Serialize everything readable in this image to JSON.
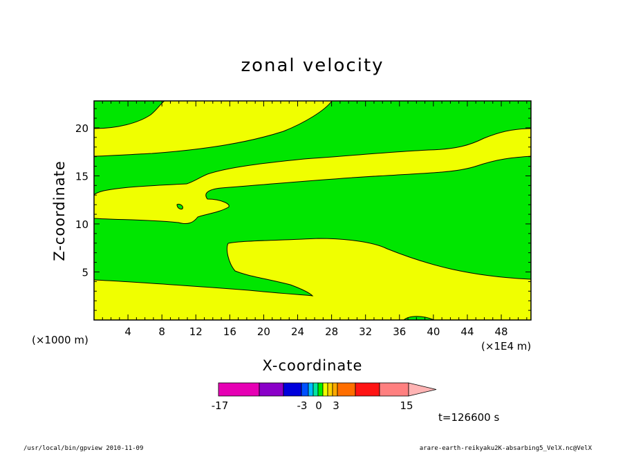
{
  "chart_data": {
    "type": "heatmap",
    "title": "zonal velocity",
    "xlabel": "X-coordinate",
    "ylabel": "Z-coordinate",
    "x_units": "(×1000 m)",
    "x_units_right": "(×1E4 m)",
    "x_ticks": [
      "4",
      "8",
      "12",
      "16",
      "20",
      "24",
      "28",
      "32",
      "36",
      "40",
      "44",
      "48"
    ],
    "y_ticks": [
      "5",
      "10",
      "15",
      "20"
    ],
    "xlim": [
      0,
      51.5
    ],
    "ylim": [
      0,
      22.8
    ],
    "colorbar": {
      "colors": [
        "#e600b4",
        "#8a00c8",
        "#0000dc",
        "#0050ff",
        "#00bcff",
        "#00e6a0",
        "#00f000",
        "#f0ff00",
        "#ffd200",
        "#ffaa00",
        "#ff6e00",
        "#ff1414",
        "#ff8080",
        "#ffb4b4"
      ],
      "labels": [
        "-17",
        "-3",
        "0",
        "3",
        "15"
      ]
    },
    "filled_regions": {
      "positive_color": "#f0ff00",
      "negative_color": "#00e600",
      "note_labels": []
    },
    "time_label": "t=126600 s"
  },
  "footer": {
    "left": "/usr/local/bin/gpview  2010-11-09",
    "right": "arare-earth-reikyaku2K-absarbing5_VelX.nc@VelX"
  }
}
